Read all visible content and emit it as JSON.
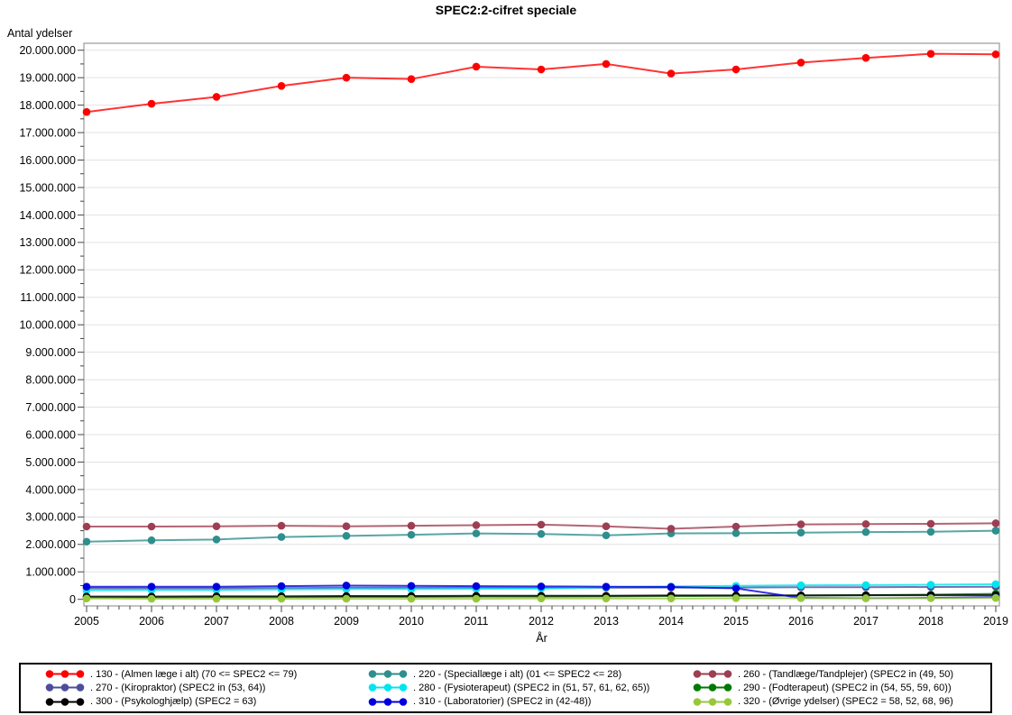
{
  "chart_data": {
    "type": "line",
    "title": "SPEC2:2-cifret speciale",
    "ylabel": "Antal ydelser",
    "xlabel": "År",
    "grid": true,
    "legend_position": "bottom",
    "ylim": [
      0,
      20000000
    ],
    "x": [
      2005,
      2006,
      2007,
      2008,
      2009,
      2010,
      2011,
      2012,
      2013,
      2014,
      2015,
      2016,
      2017,
      2018,
      2019
    ],
    "yticks": [
      {
        "value": 0,
        "label": "0"
      },
      {
        "value": 1000000,
        "label": "1.000.000"
      },
      {
        "value": 2000000,
        "label": "2.000.000"
      },
      {
        "value": 3000000,
        "label": "3.000.000"
      },
      {
        "value": 4000000,
        "label": "4.000.000"
      },
      {
        "value": 5000000,
        "label": "5.000.000"
      },
      {
        "value": 6000000,
        "label": "6.000.000"
      },
      {
        "value": 7000000,
        "label": "7.000.000"
      },
      {
        "value": 8000000,
        "label": "8.000.000"
      },
      {
        "value": 9000000,
        "label": "9.000.000"
      },
      {
        "value": 10000000,
        "label": "10.000.000"
      },
      {
        "value": 11000000,
        "label": "11.000.000"
      },
      {
        "value": 12000000,
        "label": "12.000.000"
      },
      {
        "value": 13000000,
        "label": "13.000.000"
      },
      {
        "value": 14000000,
        "label": "14.000.000"
      },
      {
        "value": 15000000,
        "label": "15.000.000"
      },
      {
        "value": 16000000,
        "label": "16.000.000"
      },
      {
        "value": 17000000,
        "label": "17.000.000"
      },
      {
        "value": 18000000,
        "label": "18.000.000"
      },
      {
        "value": 19000000,
        "label": "19.000.000"
      },
      {
        "value": 20000000,
        "label": "20.000.000"
      }
    ],
    "series": [
      {
        "id": "130",
        "name": ". 130 - (Almen læge i alt) (70 <= SPEC2 <= 79)",
        "color": "#FF0000",
        "values": [
          17750000,
          18050000,
          18300000,
          18700000,
          19000000,
          18950000,
          19400000,
          19300000,
          19500000,
          19150000,
          19300000,
          19550000,
          19720000,
          19870000,
          19850000
        ]
      },
      {
        "id": "220",
        "name": ". 220 - (Speciallæge i alt) (01 <= SPEC2 <= 28)",
        "color": "#2F8E8E",
        "values": [
          2100000,
          2150000,
          2180000,
          2270000,
          2310000,
          2350000,
          2400000,
          2380000,
          2330000,
          2400000,
          2410000,
          2430000,
          2450000,
          2460000,
          2500000
        ]
      },
      {
        "id": "260",
        "name": ". 260 - (Tandlæge/Tandplejer) (SPEC2  in (49, 50)",
        "color": "#9D3E52",
        "values": [
          2650000,
          2650000,
          2660000,
          2680000,
          2660000,
          2680000,
          2700000,
          2720000,
          2660000,
          2570000,
          2650000,
          2730000,
          2740000,
          2750000,
          2770000
        ]
      },
      {
        "id": "270",
        "name": ". 270 - (Kiropraktor) (SPEC2 in (53, 64))",
        "color": "#4D4D9E",
        "values": [
          400000,
          400000,
          400000,
          410000,
          420000,
          420000,
          420000,
          420000,
          420000,
          430000,
          430000,
          440000,
          440000,
          450000,
          460000
        ]
      },
      {
        "id": "280",
        "name": ". 280 - (Fysioterapeut) (SPEC2 in (51, 57, 61, 62, 65))",
        "color": "#00E5EE",
        "values": [
          330000,
          340000,
          340000,
          360000,
          370000,
          370000,
          380000,
          390000,
          440000,
          470000,
          490000,
          510000,
          520000,
          530000,
          550000
        ]
      },
      {
        "id": "290",
        "name": ". 290 - (Fodterapeut) (SPEC2 in (54, 55, 59, 60))",
        "color": "#007A00",
        "values": [
          70000,
          70000,
          80000,
          80000,
          90000,
          90000,
          100000,
          100000,
          110000,
          120000,
          130000,
          140000,
          150000,
          170000,
          200000
        ]
      },
      {
        "id": "300",
        "name": ". 300 - (Psykologhjælp) (SPEC2 = 63)",
        "color": "#000000",
        "values": [
          100000,
          100000,
          110000,
          110000,
          120000,
          120000,
          130000,
          130000,
          130000,
          140000,
          140000,
          140000,
          150000,
          150000,
          150000
        ]
      },
      {
        "id": "310",
        "name": ". 310 - (Laboratorier) (SPEC2 in (42-48))",
        "color": "#0000DD",
        "values": [
          460000,
          460000,
          460000,
          480000,
          500000,
          490000,
          480000,
          470000,
          460000,
          450000,
          400000,
          50000,
          40000,
          50000,
          80000
        ]
      },
      {
        "id": "320",
        "name": ". 320 - (Øvrige ydelser) (SPEC2 = 58, 52, 68, 96)",
        "color": "#97C83C",
        "values": [
          30000,
          20000,
          20000,
          20000,
          20000,
          20000,
          20000,
          30000,
          30000,
          30000,
          40000,
          40000,
          40000,
          40000,
          50000
        ]
      }
    ]
  }
}
